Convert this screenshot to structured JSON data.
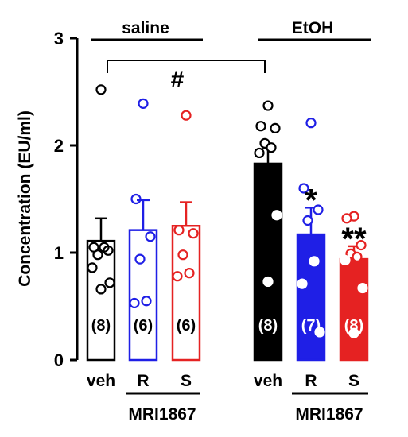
{
  "chart_data": {
    "type": "bar",
    "ylabel": "Concentration (EU/ml)",
    "ylim": [
      0,
      3
    ],
    "yticks": [
      "0",
      "1",
      "2",
      "3"
    ],
    "groups": [
      {
        "label": "saline",
        "drug_label": "MRI1867"
      },
      {
        "label": "EtOH",
        "drug_label": "MRI1867"
      }
    ],
    "categories": [
      "veh",
      "R",
      "S",
      "veh",
      "R",
      "S"
    ],
    "series": [
      {
        "group": 0,
        "category": "veh",
        "value": 1.11,
        "error": 0.21,
        "n_label": "(8)",
        "fill": "#ffffff",
        "color": "#000000",
        "points": [
          2.52,
          1.05,
          1.02,
          0.98,
          1.05,
          0.86,
          0.72,
          0.66
        ]
      },
      {
        "group": 0,
        "category": "R",
        "value": 1.21,
        "error": 0.28,
        "n_label": "(6)",
        "fill": "#ffffff",
        "color": "#1f1fe6",
        "points": [
          2.39,
          1.5,
          1.15,
          0.94,
          0.55,
          0.53
        ]
      },
      {
        "group": 0,
        "category": "S",
        "value": 1.25,
        "error": 0.22,
        "n_label": "(6)",
        "fill": "#ffffff",
        "color": "#e52222",
        "points": [
          2.28,
          1.21,
          1.18,
          0.98,
          0.81,
          0.78
        ]
      },
      {
        "group": 1,
        "category": "veh",
        "value": 1.83,
        "error": 0.15,
        "n_label": "(8)",
        "fill": "#000000",
        "color": "#000000",
        "points": [
          2.37,
          2.18,
          2.16,
          2.02,
          1.98,
          1.93,
          1.35,
          0.73
        ]
      },
      {
        "group": 1,
        "category": "R",
        "value": 1.17,
        "error": 0.25,
        "n_label": "(7)",
        "fill": "#1f1fe6",
        "color": "#1f1fe6",
        "points": [
          2.21,
          1.6,
          1.4,
          1.3,
          0.92,
          0.71,
          0.26
        ]
      },
      {
        "group": 1,
        "category": "S",
        "value": 0.94,
        "error": 0.12,
        "n_label": "(8)",
        "fill": "#e52222",
        "color": "#e52222",
        "points": [
          1.34,
          1.32,
          1.07,
          0.99,
          0.96,
          0.93,
          0.67,
          0.25
        ]
      }
    ],
    "annotations": {
      "comparison_mark": "#",
      "significance": [
        {
          "bar": 4,
          "text": "*"
        },
        {
          "bar": 5,
          "text": "**"
        }
      ]
    },
    "grid": false,
    "legend": "none"
  }
}
